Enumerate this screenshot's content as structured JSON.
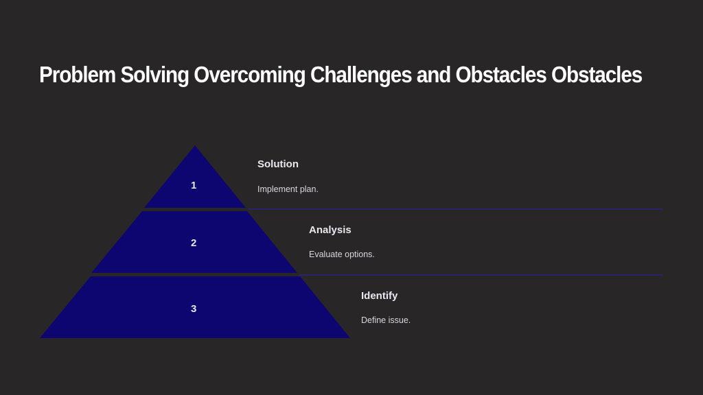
{
  "title": "Problem Solving Overcoming Challenges and Obstacles Obstacles",
  "colors": {
    "background": "#282627",
    "tier_fill": "#0d0670",
    "divider": "#2a2480"
  },
  "tiers": [
    {
      "number": "1",
      "label": "Solution",
      "description": "Implement plan."
    },
    {
      "number": "2",
      "label": "Analysis",
      "description": "Evaluate options."
    },
    {
      "number": "3",
      "label": "Identify",
      "description": "Define issue."
    }
  ]
}
